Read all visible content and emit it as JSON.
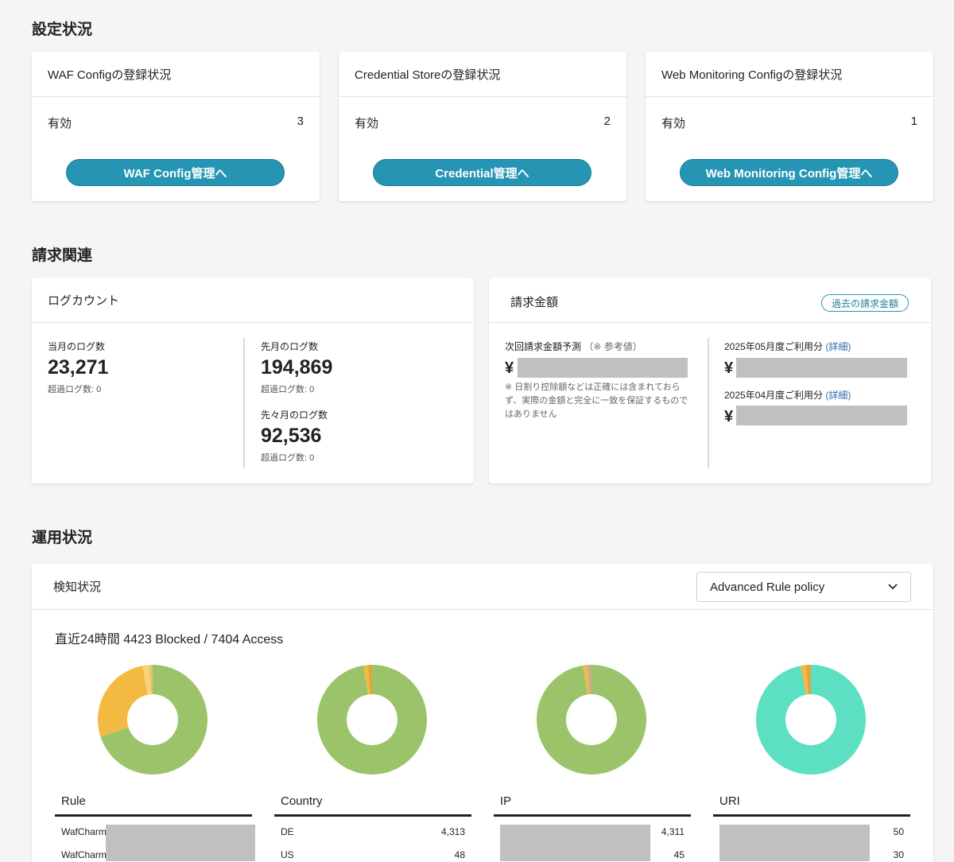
{
  "settings": {
    "title": "設定状況",
    "cards": [
      {
        "header": "WAF Configの登録状況",
        "label": "有効",
        "count": "3",
        "button": "WAF Config管理へ"
      },
      {
        "header": "Credential Storeの登録状況",
        "label": "有効",
        "count": "2",
        "button": "Credential管理へ"
      },
      {
        "header": "Web Monitoring Configの登録状況",
        "label": "有効",
        "count": "1",
        "button": "Web Monitoring Config管理へ"
      }
    ]
  },
  "billing": {
    "title": "請求関連",
    "logcount": {
      "header": "ログカウント",
      "current": {
        "label": "当月のログ数",
        "value": "23,271",
        "over": "超過ログ数: 0"
      },
      "previous": {
        "label": "先月のログ数",
        "value": "194,869",
        "over": "超過ログ数: 0"
      },
      "two_ago": {
        "label": "先々月のログ数",
        "value": "92,536",
        "over": "超過ログ数: 0"
      }
    },
    "amount": {
      "header": "請求金額",
      "past_button": "過去の請求金額",
      "forecast_label": "次回請求金額予測",
      "forecast_note": "（※ 参考値）",
      "yen": "¥",
      "disclaimer": "※ 日割り控除額などは正確には含まれておらず、実際の金額と完全に一致を保証するものではありません",
      "may_label": "2025年05月度ご利用分",
      "apr_label": "2025年04月度ご利用分",
      "detail_link": "(詳細)"
    }
  },
  "operation": {
    "title": "運用状況",
    "detection_header": "検知状況",
    "select_value": "Advanced Rule policy",
    "summary": "直近24時間 4423 Blocked / 7404 Access"
  },
  "colors": {
    "accent": "#2595b3",
    "green": "#9bc46a",
    "orange": "#f4b942",
    "teal": "#5ddfc3"
  },
  "chart_data": [
    {
      "type": "pie",
      "title": "Rule",
      "values": [
        70,
        27,
        2,
        1
      ],
      "colors": [
        "#9bc46a",
        "#f4b942",
        "#f7d27a",
        "#e8c16a"
      ]
    },
    {
      "type": "pie",
      "title": "Country",
      "values": [
        97.5,
        1.3,
        1.2
      ],
      "colors": [
        "#9bc46a",
        "#f4b942",
        "#e0a63a"
      ]
    },
    {
      "type": "pie",
      "title": "IP",
      "values": [
        97.5,
        1.2,
        1.3
      ],
      "colors": [
        "#9bc46a",
        "#f4b942",
        "#c8b08a"
      ]
    },
    {
      "type": "pie",
      "title": "URI",
      "values": [
        97,
        1.5,
        1.5
      ],
      "colors": [
        "#5ddfc3",
        "#f4b942",
        "#e0a63a"
      ]
    }
  ],
  "tables": [
    {
      "header": "Rule",
      "rows": [
        {
          "label": "WafCharm",
          "value": ""
        },
        {
          "label": "WafCharm",
          "value": ""
        }
      ]
    },
    {
      "header": "Country",
      "rows": [
        {
          "label": "DE",
          "value": "4,313"
        },
        {
          "label": "US",
          "value": "48"
        }
      ]
    },
    {
      "header": "IP",
      "rows": [
        {
          "label": "",
          "value": "4,311"
        },
        {
          "label": "",
          "value": "45"
        }
      ]
    },
    {
      "header": "URI",
      "rows": [
        {
          "label": "",
          "value": "50"
        },
        {
          "label": "",
          "value": "30"
        }
      ]
    }
  ]
}
